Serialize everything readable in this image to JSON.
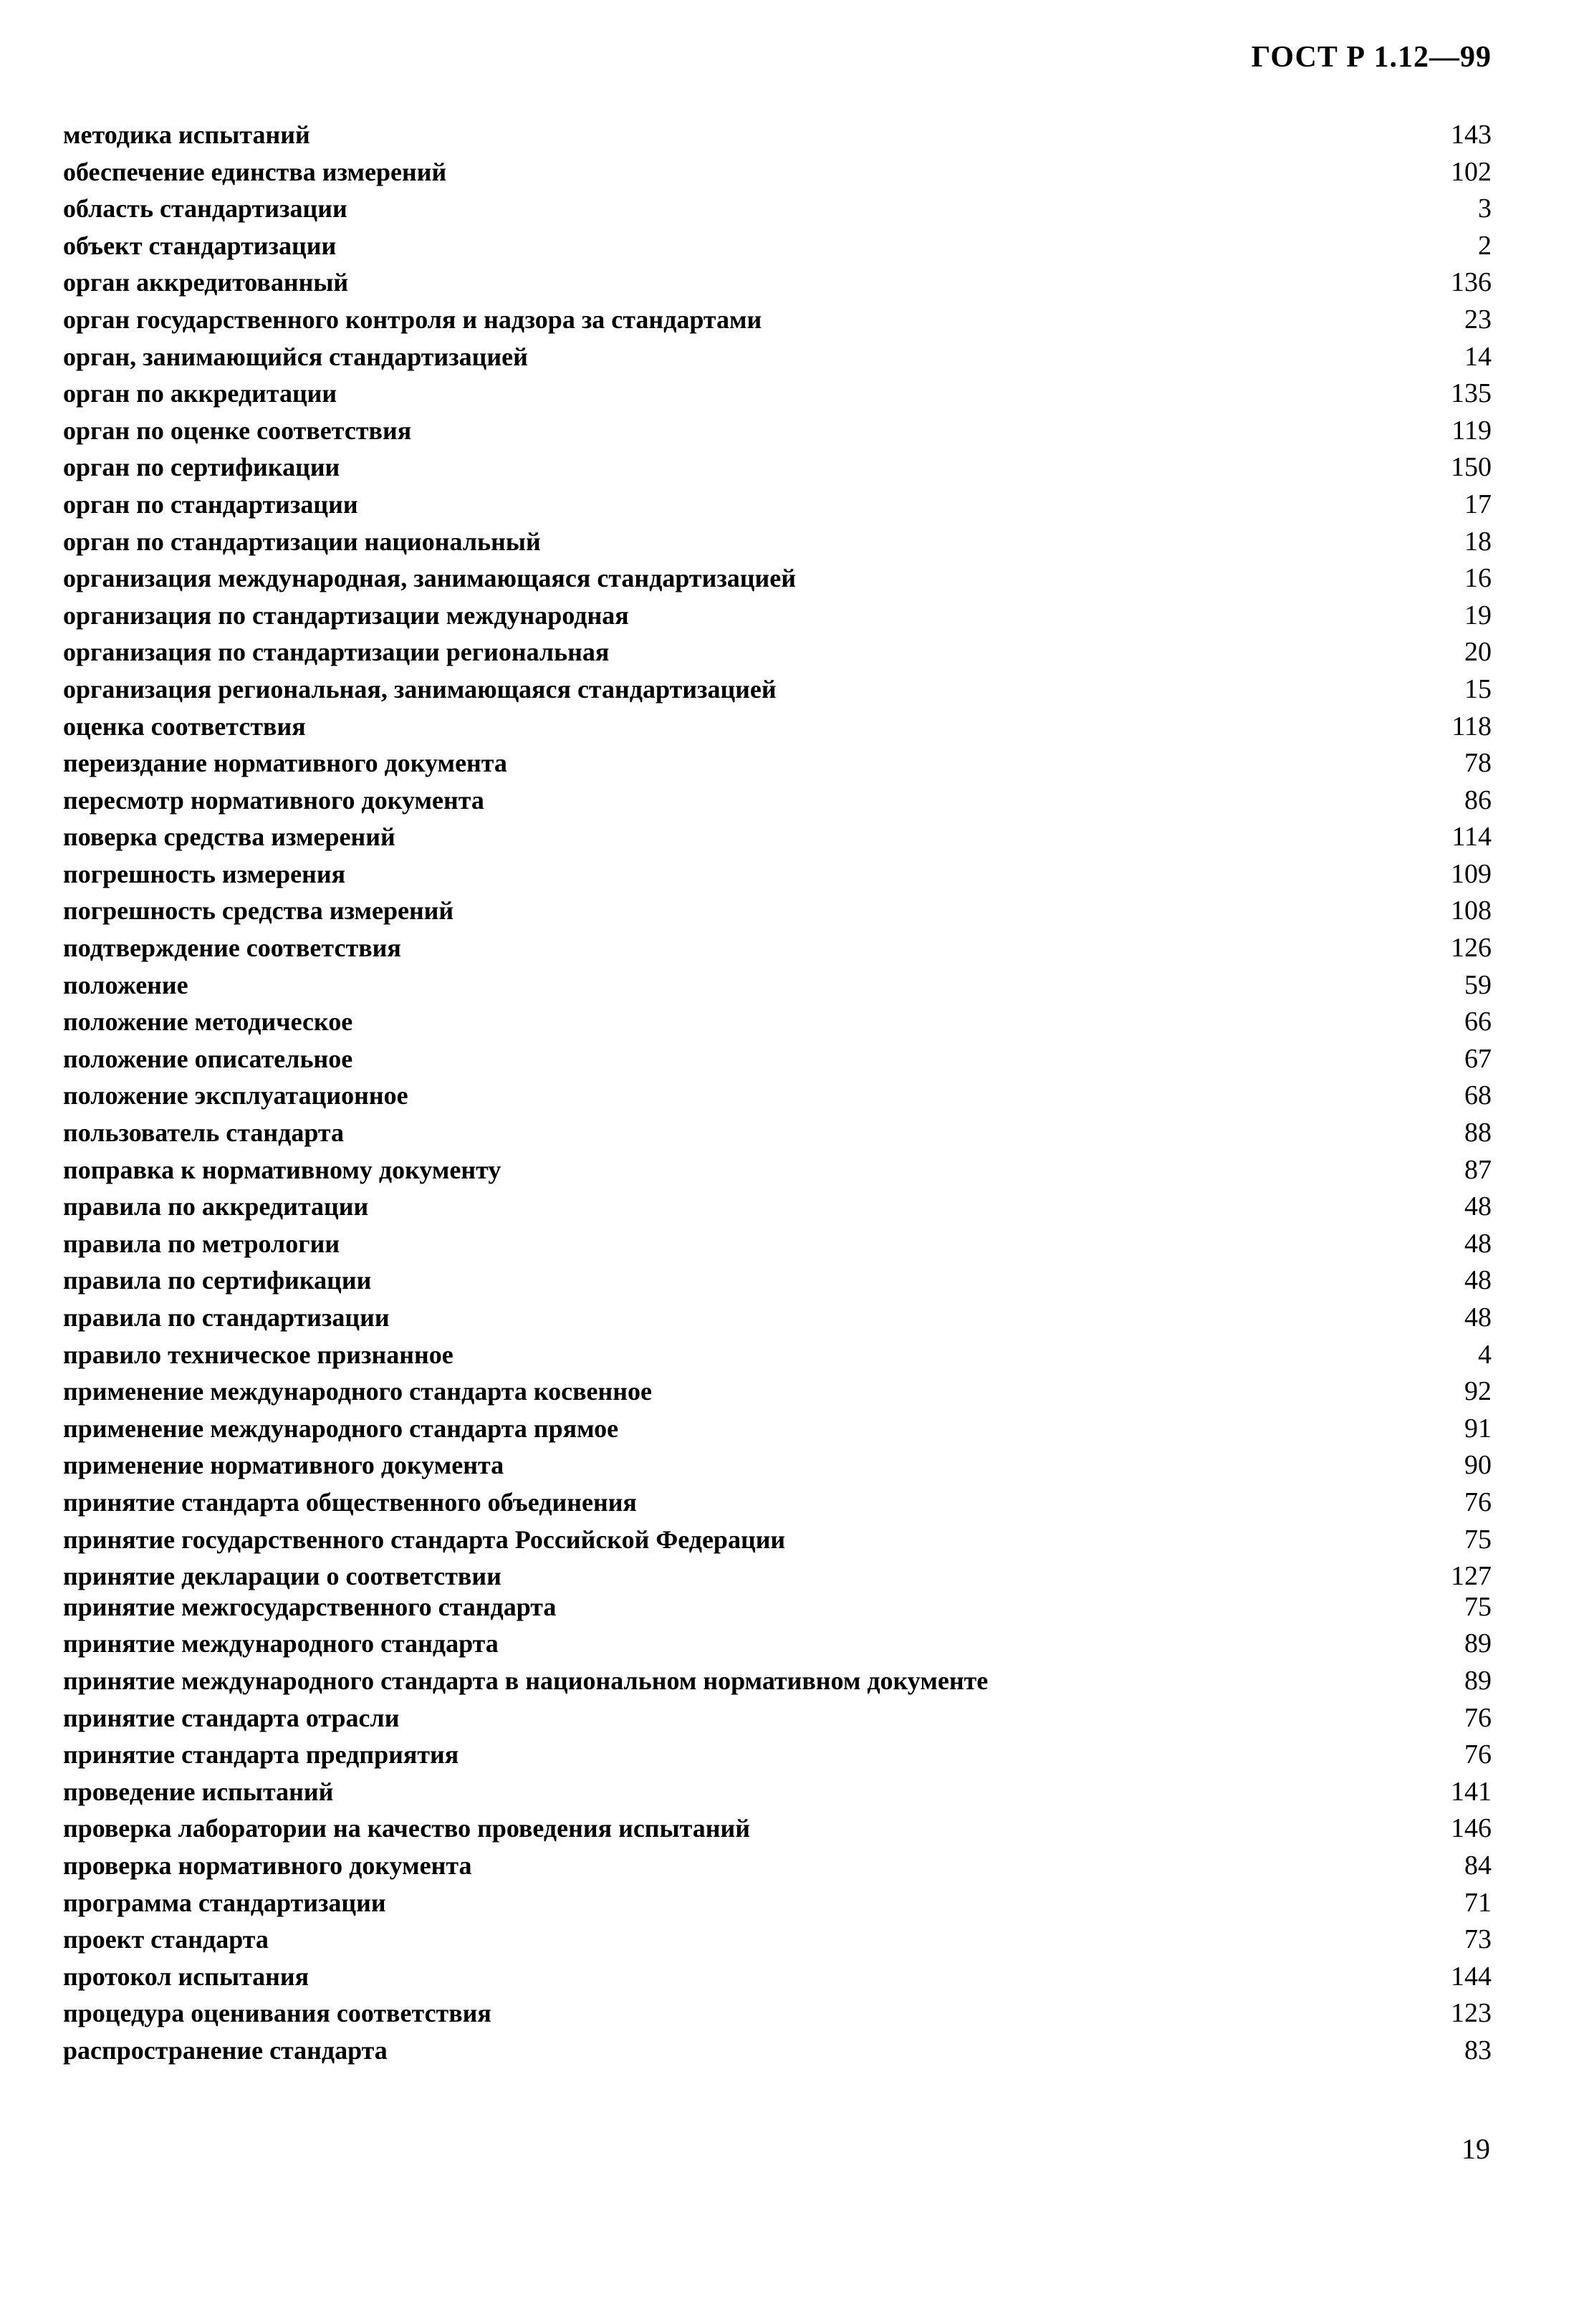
{
  "document": {
    "code": "ГОСТ Р 1.12—99",
    "page_number": "19"
  },
  "index": {
    "entries": [
      {
        "term": "методика испытаний",
        "page": "143"
      },
      {
        "term": "обеспечение единства измерений",
        "page": "102"
      },
      {
        "term": "область стандартизации",
        "page": "3"
      },
      {
        "term": "объект стандартизации",
        "page": "2"
      },
      {
        "term": "орган аккредитованный",
        "page": "136"
      },
      {
        "term": "орган государственного контроля и надзора за стандартами",
        "page": "23"
      },
      {
        "term": "орган, занимающийся стандартизацией",
        "page": "14"
      },
      {
        "term": "орган по аккредитации",
        "page": "135"
      },
      {
        "term": "орган по оценке соответствия",
        "page": "119"
      },
      {
        "term": "орган по сертификации",
        "page": "150"
      },
      {
        "term": "орган по стандартизации",
        "page": "17"
      },
      {
        "term": "орган по стандартизации национальный",
        "page": "18"
      },
      {
        "term": "организация международная, занимающаяся стандартизацией",
        "page": "16"
      },
      {
        "term": "организация по стандартизации международная",
        "page": "19"
      },
      {
        "term": "организация по стандартизации региональная",
        "page": "20"
      },
      {
        "term": "организация региональная, занимающаяся стандартизацией",
        "page": "15"
      },
      {
        "term": "оценка соответствия",
        "page": "118"
      },
      {
        "term": "переиздание нормативного документа",
        "page": "78"
      },
      {
        "term": "пересмотр нормативного документа",
        "page": "86"
      },
      {
        "term": "поверка средства измерений",
        "page": "114"
      },
      {
        "term": "погрешность измерения",
        "page": "109"
      },
      {
        "term": "погрешность средства измерений",
        "page": "108"
      },
      {
        "term": "подтверждение соответствия",
        "page": "126"
      },
      {
        "term": "положение",
        "page": "59"
      },
      {
        "term": "положение методическое",
        "page": "66"
      },
      {
        "term": "положение описательное",
        "page": "67"
      },
      {
        "term": "положение эксплуатационное",
        "page": "68"
      },
      {
        "term": "пользователь стандарта",
        "page": "88"
      },
      {
        "term": "поправка к нормативному документу",
        "page": "87"
      },
      {
        "term": "правила по аккредитации",
        "page": "48"
      },
      {
        "term": "правила по метрологии",
        "page": "48"
      },
      {
        "term": "правила по сертификации",
        "page": "48"
      },
      {
        "term": "правила по стандартизации",
        "page": "48"
      },
      {
        "term": "правило техническое признанное",
        "page": "4"
      },
      {
        "term": "применение международного стандарта косвенное",
        "page": "92"
      },
      {
        "term": "применение международного стандарта прямое",
        "page": "91"
      },
      {
        "term": "применение нормативного документа",
        "page": "90"
      },
      {
        "term": "принятие стандарта общественного объединения",
        "page": "76"
      },
      {
        "term": "принятие государственного стандарта Российской Федерации",
        "page": "75"
      },
      {
        "term": "принятие декларации о соответствии",
        "page": "127"
      },
      {
        "term": "принятие межгосударственного стандарта",
        "page": "75",
        "tight": true
      },
      {
        "term": "принятие международного стандарта",
        "page": "89"
      },
      {
        "term": "принятие международного стандарта в национальном нормативном документе",
        "page": "89"
      },
      {
        "term": "принятие стандарта отрасли",
        "page": "76"
      },
      {
        "term": "принятие стандарта предприятия",
        "page": "76"
      },
      {
        "term": "проведение испытаний",
        "page": "141"
      },
      {
        "term": "проверка лаборатории на качество проведения испытаний",
        "page": "146"
      },
      {
        "term": "проверка нормативного документа",
        "page": "84"
      },
      {
        "term": "программа стандартизации",
        "page": "71"
      },
      {
        "term": "проект стандарта",
        "page": "73"
      },
      {
        "term": "протокол испытания",
        "page": "144"
      },
      {
        "term": "процедура оценивания соответствия",
        "page": "123"
      },
      {
        "term": "распространение стандарта",
        "page": "83"
      }
    ]
  }
}
